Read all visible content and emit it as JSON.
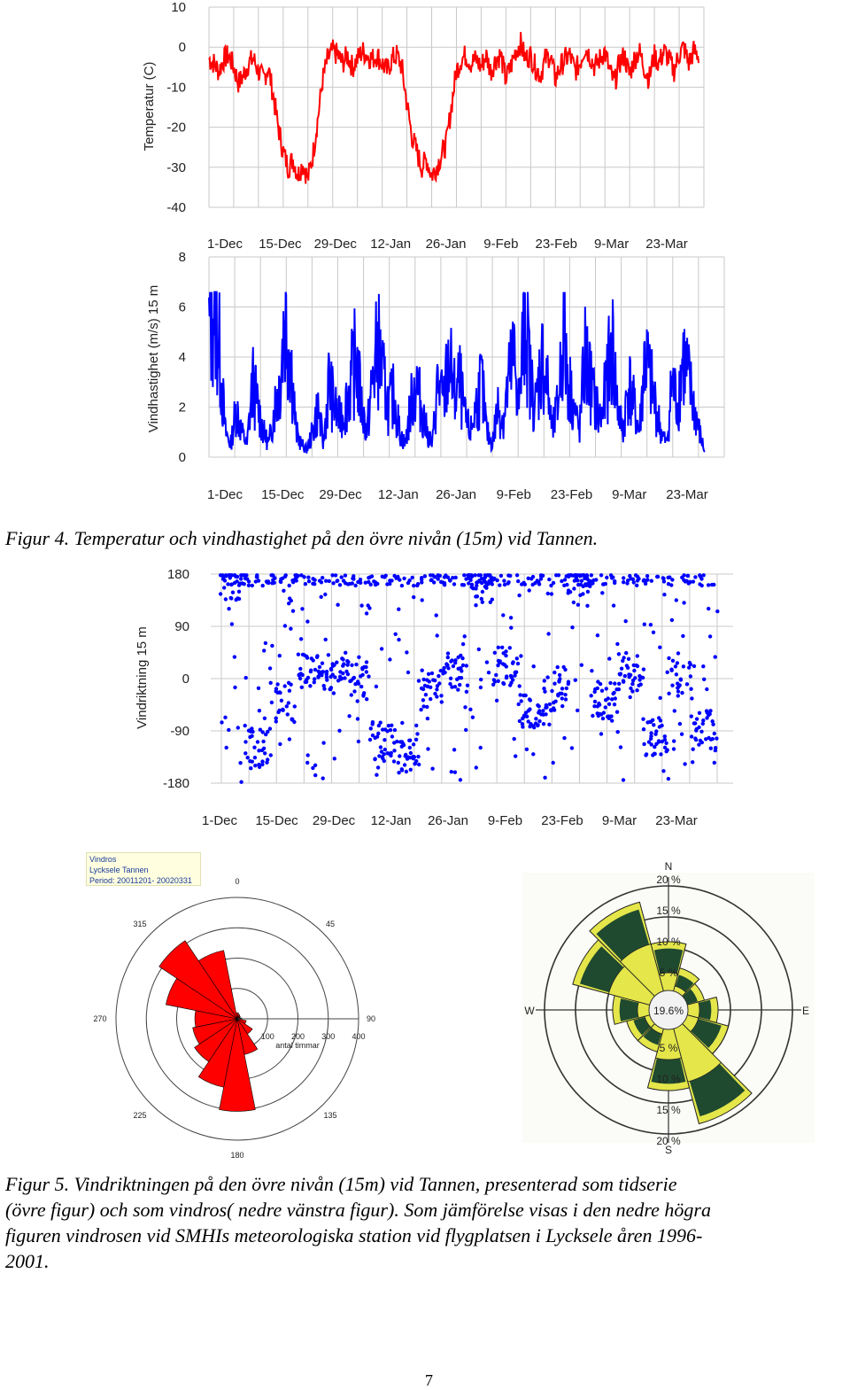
{
  "charts": [
    {
      "type": "line",
      "ylabel": "Temperatur (C)",
      "yticks": [
        10,
        0,
        -10,
        -20,
        -30,
        -40
      ],
      "ylim": [
        -40,
        10
      ],
      "xticks": [
        "1-Dec",
        "15-Dec",
        "29-Dec",
        "12-Jan",
        "26-Jan",
        "9-Feb",
        "23-Feb",
        "9-Mar",
        "23-Mar"
      ],
      "color": "#ff0000",
      "series_name": "Temperatur 15 m",
      "values": [
        -3,
        -4,
        -6,
        -3,
        -2,
        -5,
        -9,
        -7,
        -4,
        -3,
        -6,
        -8,
        -5,
        -12,
        -20,
        -26,
        -30,
        -28,
        -32,
        -29,
        -33,
        -27,
        -18,
        -8,
        -3,
        -1,
        -2,
        -4,
        -2,
        -5,
        -3,
        -1,
        -2,
        -3,
        -2,
        -4,
        -6,
        -3,
        -2,
        -5,
        -14,
        -22,
        -26,
        -30,
        -28,
        -32,
        -30,
        -27,
        -24,
        -15,
        -6,
        -3,
        -2,
        -4,
        -3,
        -5,
        -2,
        -6,
        -3,
        -2,
        -8,
        -5,
        -1,
        1,
        -3,
        -2,
        -5,
        -7,
        -3,
        -2,
        -8,
        -5,
        -3,
        -2,
        -6,
        -4,
        0,
        -2,
        -5,
        -3,
        -1,
        -6,
        -9,
        -4,
        -2,
        -7,
        -3,
        -1,
        -5,
        -8,
        -2,
        -4,
        -1,
        -3,
        -6,
        -2,
        0,
        -4,
        -1,
        -2
      ]
    },
    {
      "type": "line",
      "ylabel": "Vindhastighet (m/s) 15 m",
      "yticks": [
        8,
        6,
        4,
        2,
        0
      ],
      "ylim": [
        0,
        8
      ],
      "xticks": [
        "1-Dec",
        "15-Dec",
        "29-Dec",
        "12-Jan",
        "26-Jan",
        "9-Feb",
        "23-Feb",
        "9-Mar",
        "23-Mar"
      ],
      "color": "#0000ff",
      "series_name": "Vindhastighet 15 m",
      "values": [
        5,
        6.5,
        4,
        1,
        0.5,
        2,
        1,
        0.5,
        3,
        2,
        1,
        0.5,
        2,
        3,
        6,
        4,
        1,
        0.5,
        0.3,
        1,
        2,
        0.5,
        3,
        2,
        1.5,
        2,
        3,
        4,
        2,
        1,
        3,
        4.5,
        3,
        2,
        2.5,
        1,
        0.5,
        2,
        3,
        2,
        1,
        0.5,
        3,
        2,
        4,
        2.5,
        3,
        1.5,
        1,
        2,
        3,
        1,
        0.5,
        2,
        1.5,
        3,
        4,
        2,
        6.2,
        3,
        2,
        4,
        3,
        1,
        2,
        5,
        3,
        2,
        1,
        4,
        3,
        2,
        1.5,
        3,
        4.5,
        2,
        1,
        3,
        2,
        1,
        4,
        3,
        2,
        1,
        0.5,
        3,
        2,
        4,
        3,
        2,
        1,
        0.2
      ]
    },
    {
      "type": "scatter",
      "ylabel": "Vindriktning 15 m",
      "yticks": [
        180,
        90,
        0,
        -90,
        -180
      ],
      "ylim": [
        -180,
        180
      ],
      "xticks": [
        "1-Dec",
        "15-Dec",
        "29-Dec",
        "12-Jan",
        "26-Jan",
        "9-Feb",
        "23-Feb",
        "9-Mar",
        "23-Mar"
      ],
      "color": "#0000ff",
      "series_name": "Vindriktning 15 m"
    }
  ],
  "figure4_caption": {
    "label": "Figur 4.",
    "text": "Temperatur och vindhastighet på den övre nivån (15m) vid Tannen."
  },
  "rose_left": {
    "title": "Vindros",
    "station": "Lycksele Tannen",
    "period": "Period: 20011201- 20020331",
    "angle_labels": [
      "0",
      "45",
      "90",
      "135",
      "180",
      "225",
      "270",
      "315"
    ],
    "radial_labels": [
      "100",
      "200",
      "300",
      "400"
    ],
    "radial_title": "antal timmar",
    "sectors_hours": [
      20,
      15,
      12,
      10,
      15,
      30,
      60,
      120,
      305,
      230,
      170,
      150,
      140,
      240,
      310,
      230
    ],
    "color": "#ff0000"
  },
  "rose_right": {
    "compass": [
      "N",
      "E",
      "S",
      "W"
    ],
    "rings": [
      "5 %",
      "10 %",
      "15 %",
      "20 %"
    ],
    "calm": "19.6%",
    "colors": {
      "outer": "#1f4a2f",
      "inner": "#e4e64a"
    }
  },
  "figure5_caption": {
    "label": "Figur 5.",
    "lines": [
      "Vindriktningen på den övre nivån (15m) vid Tannen, presenterad som tidserie",
      "(övre figur) och som vindros( nedre vänstra figur). Som jämförelse visas i den nedre högra",
      "figuren vindrosen vid SMHIs meteorologiska station vid flygplatsen i Lycksele åren 1996-",
      "2001."
    ]
  },
  "page_number": "7"
}
